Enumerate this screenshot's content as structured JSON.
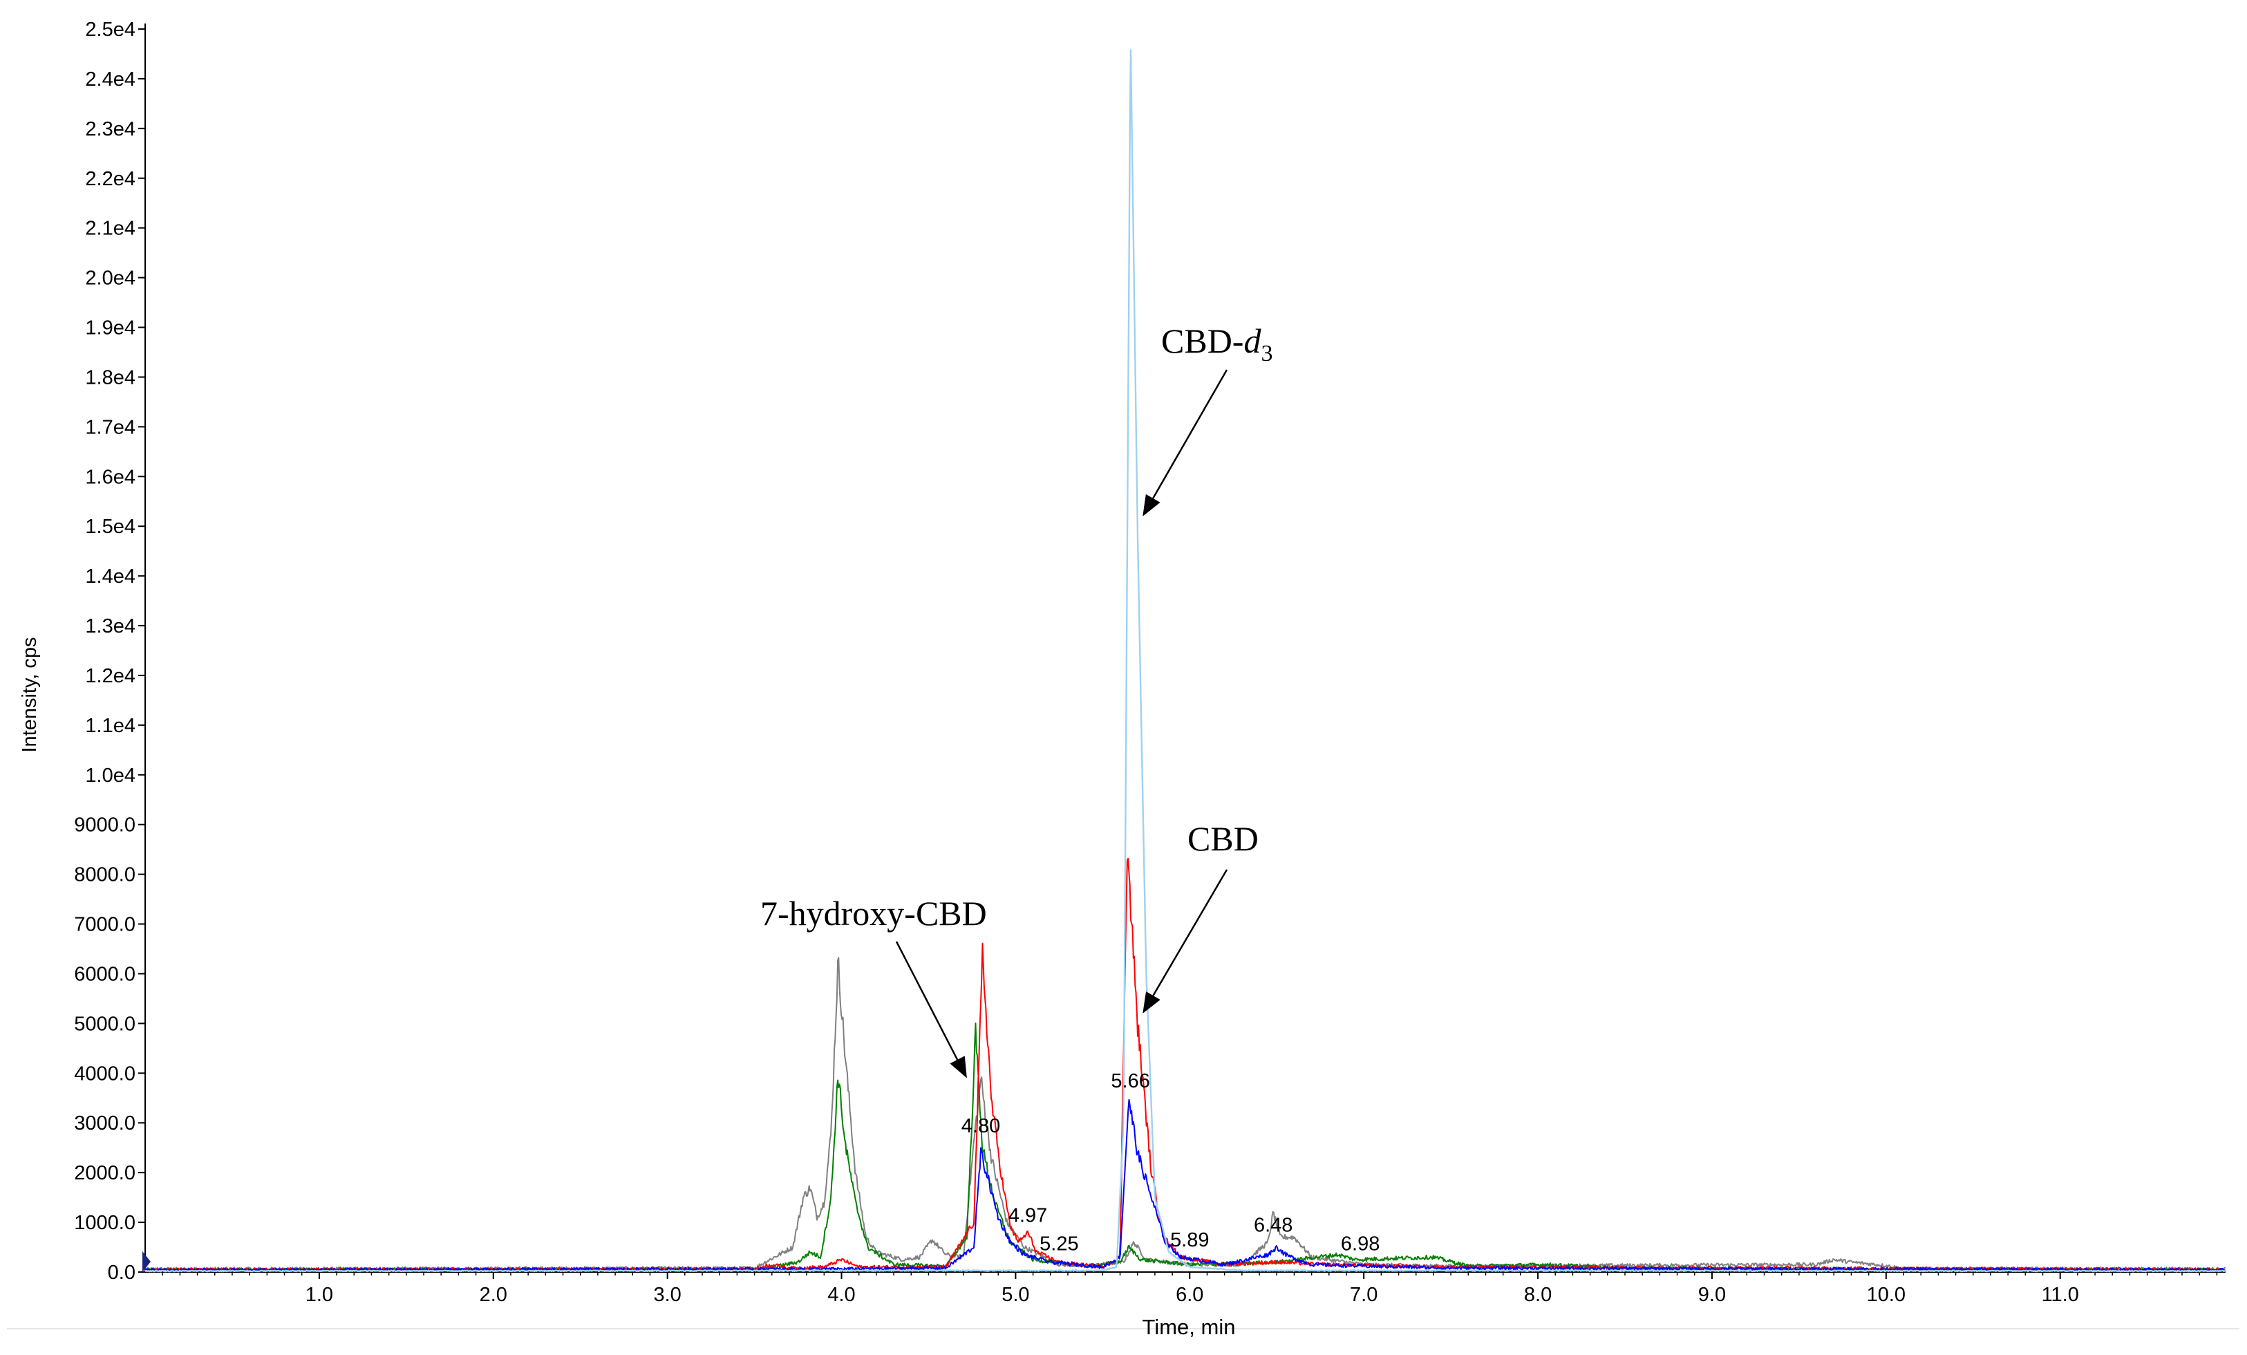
{
  "chart_data": {
    "type": "line",
    "title": "",
    "xlabel": "Time, min",
    "ylabel": "Intensity, cps",
    "xlim": [
      0,
      11.95
    ],
    "ylim": [
      0,
      25000
    ],
    "x_ticks": [
      1,
      2,
      3,
      4,
      5,
      6,
      7,
      8,
      9,
      10,
      11
    ],
    "x_tick_labels": [
      "1.0",
      "2.0",
      "3.0",
      "4.0",
      "5.0",
      "6.0",
      "7.0",
      "8.0",
      "9.0",
      "10.0",
      "11.0"
    ],
    "y_ticks": [
      0,
      1000,
      2000,
      3000,
      4000,
      5000,
      6000,
      7000,
      8000,
      9000,
      10000,
      11000,
      12000,
      13000,
      14000,
      15000,
      16000,
      17000,
      18000,
      19000,
      20000,
      21000,
      22000,
      23000,
      24000,
      25000
    ],
    "y_tick_labels": [
      "0.0",
      "1000.0",
      "2000.0",
      "3000.0",
      "4000.0",
      "5000.0",
      "6000.0",
      "7000.0",
      "8000.0",
      "9000.0",
      "1.0e4",
      "1.1e4",
      "1.2e4",
      "1.3e4",
      "1.4e4",
      "1.5e4",
      "1.6e4",
      "1.7e4",
      "1.8e4",
      "1.9e4",
      "2.0e4",
      "2.1e4",
      "2.2e4",
      "2.3e4",
      "2.4e4",
      "2.5e4"
    ],
    "grid": false,
    "legend": "none",
    "series": [
      {
        "color": "#808080",
        "points": [
          [
            0,
            60
          ],
          [
            3.5,
            80
          ],
          [
            3.72,
            500
          ],
          [
            3.78,
            1500
          ],
          [
            3.82,
            1700
          ],
          [
            3.86,
            1100
          ],
          [
            3.9,
            1400
          ],
          [
            3.94,
            2800
          ],
          [
            3.98,
            6250
          ],
          [
            4.02,
            4400
          ],
          [
            4.08,
            2000
          ],
          [
            4.14,
            700
          ],
          [
            4.2,
            400
          ],
          [
            4.35,
            250
          ],
          [
            4.45,
            300
          ],
          [
            4.52,
            650
          ],
          [
            4.6,
            350
          ],
          [
            4.7,
            300
          ],
          [
            4.76,
            2600
          ],
          [
            4.8,
            3900
          ],
          [
            4.86,
            2300
          ],
          [
            4.95,
            1000
          ],
          [
            5.05,
            500
          ],
          [
            5.25,
            150
          ],
          [
            5.4,
            120
          ],
          [
            5.62,
            200
          ],
          [
            5.68,
            600
          ],
          [
            5.75,
            250
          ],
          [
            6.0,
            150
          ],
          [
            6.3,
            150
          ],
          [
            6.45,
            600
          ],
          [
            6.48,
            1200
          ],
          [
            6.52,
            700
          ],
          [
            6.6,
            700
          ],
          [
            6.7,
            300
          ],
          [
            7.0,
            150
          ],
          [
            7.5,
            120
          ],
          [
            9.6,
            150
          ],
          [
            9.7,
            250
          ],
          [
            9.8,
            200
          ],
          [
            10.0,
            130
          ],
          [
            10.1,
            70
          ],
          [
            11.95,
            60
          ]
        ]
      },
      {
        "color": "#008000",
        "points": [
          [
            0,
            40
          ],
          [
            3.55,
            60
          ],
          [
            3.75,
            200
          ],
          [
            3.82,
            400
          ],
          [
            3.88,
            300
          ],
          [
            3.94,
            1500
          ],
          [
            3.98,
            4000
          ],
          [
            4.02,
            2600
          ],
          [
            4.08,
            1400
          ],
          [
            4.15,
            500
          ],
          [
            4.3,
            150
          ],
          [
            4.6,
            120
          ],
          [
            4.72,
            700
          ],
          [
            4.77,
            4800
          ],
          [
            4.81,
            2500
          ],
          [
            4.88,
            1400
          ],
          [
            4.97,
            600
          ],
          [
            5.1,
            250
          ],
          [
            5.4,
            120
          ],
          [
            5.6,
            200
          ],
          [
            5.65,
            500
          ],
          [
            5.72,
            250
          ],
          [
            6.0,
            150
          ],
          [
            6.5,
            200
          ],
          [
            6.85,
            350
          ],
          [
            6.95,
            250
          ],
          [
            7.4,
            300
          ],
          [
            7.6,
            120
          ],
          [
            8.05,
            150
          ],
          [
            8.5,
            80
          ],
          [
            11.95,
            40
          ]
        ]
      },
      {
        "color": "#ff0000",
        "points": [
          [
            0,
            50
          ],
          [
            3.5,
            60
          ],
          [
            3.6,
            150
          ],
          [
            3.7,
            80
          ],
          [
            3.9,
            100
          ],
          [
            4.0,
            250
          ],
          [
            4.1,
            100
          ],
          [
            4.6,
            100
          ],
          [
            4.76,
            1000
          ],
          [
            4.81,
            6400
          ],
          [
            4.86,
            3500
          ],
          [
            4.92,
            1900
          ],
          [
            4.97,
            900
          ],
          [
            5.02,
            600
          ],
          [
            5.07,
            800
          ],
          [
            5.12,
            400
          ],
          [
            5.25,
            200
          ],
          [
            5.5,
            100
          ],
          [
            5.6,
            300
          ],
          [
            5.64,
            8600
          ],
          [
            5.7,
            5000
          ],
          [
            5.78,
            2000
          ],
          [
            5.85,
            700
          ],
          [
            5.95,
            300
          ],
          [
            6.2,
            150
          ],
          [
            6.5,
            200
          ],
          [
            6.8,
            150
          ],
          [
            7.5,
            100
          ],
          [
            11.95,
            50
          ]
        ]
      },
      {
        "color": "#0000ff",
        "points": [
          [
            0,
            40
          ],
          [
            3.9,
            60
          ],
          [
            4.6,
            80
          ],
          [
            4.76,
            500
          ],
          [
            4.8,
            2400
          ],
          [
            4.84,
            1900
          ],
          [
            4.9,
            1100
          ],
          [
            4.97,
            600
          ],
          [
            5.05,
            350
          ],
          [
            5.2,
            200
          ],
          [
            5.5,
            100
          ],
          [
            5.6,
            300
          ],
          [
            5.65,
            3500
          ],
          [
            5.7,
            2400
          ],
          [
            5.78,
            1500
          ],
          [
            5.86,
            600
          ],
          [
            5.95,
            300
          ],
          [
            6.2,
            150
          ],
          [
            6.45,
            350
          ],
          [
            6.5,
            500
          ],
          [
            6.55,
            350
          ],
          [
            6.62,
            250
          ],
          [
            6.7,
            150
          ],
          [
            7.0,
            120
          ],
          [
            7.5,
            80
          ],
          [
            11.95,
            40
          ]
        ]
      },
      {
        "color": "#9fd0f0",
        "points": [
          [
            0,
            20
          ],
          [
            5.5,
            30
          ],
          [
            5.58,
            100
          ],
          [
            5.62,
            3000
          ],
          [
            5.66,
            24900
          ],
          [
            5.7,
            15000
          ],
          [
            5.75,
            6000
          ],
          [
            5.8,
            1500
          ],
          [
            5.88,
            400
          ],
          [
            6.0,
            100
          ],
          [
            6.3,
            30
          ],
          [
            11.95,
            20
          ]
        ]
      }
    ],
    "peak_labels": [
      {
        "text": "4.80",
        "x": 4.8,
        "y": 2700
      },
      {
        "text": "4.97",
        "x": 5.07,
        "y": 900
      },
      {
        "text": "5.25",
        "x": 5.25,
        "y": 330
      },
      {
        "text": "5.66",
        "x": 5.66,
        "y": 3600
      },
      {
        "text": "5.89",
        "x": 6.0,
        "y": 400
      },
      {
        "text": "6.48",
        "x": 6.48,
        "y": 700
      },
      {
        "text": "6.98",
        "x": 6.98,
        "y": 330
      }
    ],
    "annotations": [
      {
        "text": "CBD-",
        "subscript_italic": "d",
        "subscript": "3",
        "target_x": 5.73,
        "target_y": 15200
      },
      {
        "text": "CBD",
        "target_x": 5.73,
        "target_y": 5200
      },
      {
        "text": "7-hydroxy-CBD",
        "target_x": 4.72,
        "target_y": 3900
      }
    ]
  }
}
